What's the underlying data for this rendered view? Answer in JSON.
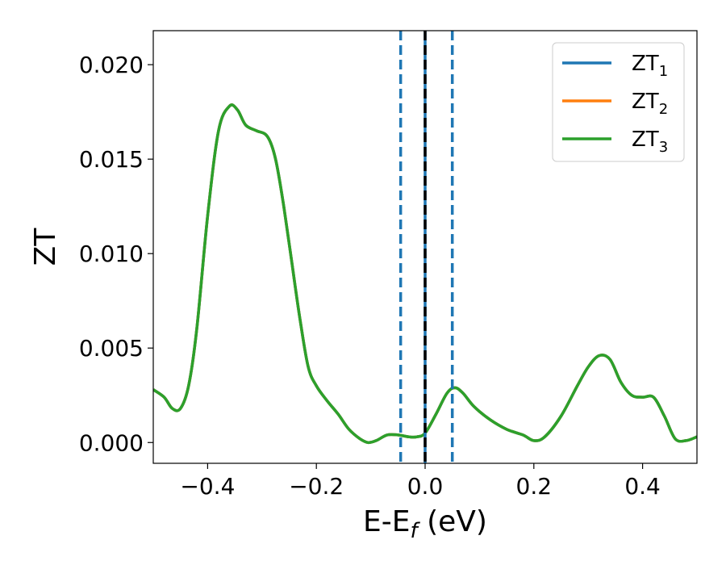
{
  "chart_data": {
    "type": "line",
    "xlabel": {
      "base": "E-E",
      "sub": "f",
      "tail": " (eV)"
    },
    "ylabel": "ZT",
    "xlim": [
      -0.5,
      0.5
    ],
    "ylim": [
      -0.0011,
      0.0218
    ],
    "xticks": [
      -0.4,
      -0.2,
      0.0,
      0.2,
      0.4
    ],
    "xtick_labels": [
      "−0.4",
      "−0.2",
      "0.0",
      "0.2",
      "0.4"
    ],
    "yticks": [
      0.0,
      0.005,
      0.01,
      0.015,
      0.02
    ],
    "ytick_labels": [
      "0.000",
      "0.005",
      "0.010",
      "0.015",
      "0.020"
    ],
    "grid": false,
    "legend_position": "top-right",
    "legend": [
      {
        "base": "ZT",
        "sub": "1",
        "color": "#1f77b4"
      },
      {
        "base": "ZT",
        "sub": "2",
        "color": "#ff7f0e"
      },
      {
        "base": "ZT",
        "sub": "3",
        "color": "#2ca02c"
      }
    ],
    "vlines": [
      {
        "x": -0.045,
        "style": "dashed",
        "color": "#1f77b4"
      },
      {
        "x": 0.0,
        "style": "solid",
        "color": "#1f77b4"
      },
      {
        "x": 0.0,
        "style": "dashed",
        "color": "#000000"
      },
      {
        "x": 0.05,
        "style": "dashed",
        "color": "#1f77b4"
      }
    ],
    "x": [
      -0.5,
      -0.48,
      -0.465,
      -0.45,
      -0.435,
      -0.42,
      -0.4,
      -0.38,
      -0.36,
      -0.345,
      -0.33,
      -0.31,
      -0.29,
      -0.275,
      -0.26,
      -0.245,
      -0.23,
      -0.215,
      -0.2,
      -0.18,
      -0.16,
      -0.14,
      -0.12,
      -0.105,
      -0.09,
      -0.07,
      -0.05,
      -0.03,
      -0.015,
      0.0,
      0.02,
      0.04,
      0.055,
      0.07,
      0.09,
      0.12,
      0.15,
      0.18,
      0.2,
      0.22,
      0.25,
      0.28,
      0.3,
      0.32,
      0.34,
      0.36,
      0.38,
      0.4,
      0.42,
      0.44,
      0.46,
      0.48,
      0.5
    ],
    "series": [
      {
        "color": "#1f77b4",
        "values": [
          0.0028,
          0.0024,
          0.0018,
          0.0018,
          0.003,
          0.006,
          0.012,
          0.0165,
          0.0178,
          0.0176,
          0.0168,
          0.0165,
          0.0162,
          0.015,
          0.0125,
          0.0095,
          0.0065,
          0.004,
          0.003,
          0.0022,
          0.0015,
          0.0007,
          0.0002,
          0.0,
          0.0001,
          0.0004,
          0.0004,
          0.0003,
          0.0003,
          0.0005,
          0.0015,
          0.0026,
          0.0029,
          0.0026,
          0.0019,
          0.0012,
          0.0007,
          0.0004,
          0.0001,
          0.0003,
          0.0014,
          0.003,
          0.004,
          0.0046,
          0.0044,
          0.0032,
          0.0025,
          0.0024,
          0.0024,
          0.0014,
          0.0002,
          0.0001,
          0.0003
        ]
      },
      {
        "color": "#ff7f0e",
        "values": [
          0.0028,
          0.0024,
          0.0018,
          0.0018,
          0.003,
          0.006,
          0.012,
          0.0165,
          0.0178,
          0.0176,
          0.0168,
          0.0165,
          0.0162,
          0.015,
          0.0125,
          0.0095,
          0.0065,
          0.004,
          0.003,
          0.0022,
          0.0015,
          0.0007,
          0.0002,
          0.0,
          0.0001,
          0.0004,
          0.0004,
          0.0003,
          0.0003,
          0.0005,
          0.0015,
          0.0026,
          0.0029,
          0.0026,
          0.0019,
          0.0012,
          0.0007,
          0.0004,
          0.0001,
          0.0003,
          0.0014,
          0.003,
          0.004,
          0.0046,
          0.0044,
          0.0032,
          0.0025,
          0.0024,
          0.0024,
          0.0014,
          0.0002,
          0.0001,
          0.0003
        ]
      },
      {
        "color": "#2ca02c",
        "values": [
          0.0028,
          0.0024,
          0.0018,
          0.0018,
          0.003,
          0.006,
          0.012,
          0.0165,
          0.0178,
          0.0176,
          0.0168,
          0.0165,
          0.0162,
          0.015,
          0.0125,
          0.0095,
          0.0065,
          0.004,
          0.003,
          0.0022,
          0.0015,
          0.0007,
          0.0002,
          0.0,
          0.0001,
          0.0004,
          0.0004,
          0.0003,
          0.0003,
          0.0005,
          0.0015,
          0.0026,
          0.0029,
          0.0026,
          0.0019,
          0.0012,
          0.0007,
          0.0004,
          0.0001,
          0.0003,
          0.0014,
          0.003,
          0.004,
          0.0046,
          0.0044,
          0.0032,
          0.0025,
          0.0024,
          0.0024,
          0.0014,
          0.0002,
          0.0001,
          0.0003
        ]
      }
    ]
  }
}
